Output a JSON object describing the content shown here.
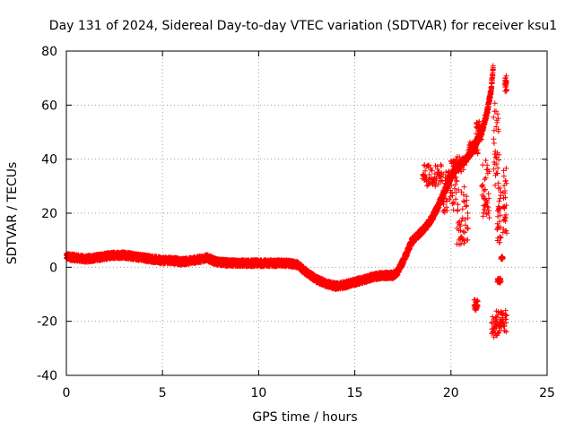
{
  "chart_data": {
    "type": "scatter",
    "title": "Day 131 of 2024, Sidereal Day-to-day VTEC variation (SDTVAR) for receiver ksu1",
    "xlabel": "GPS time / hours",
    "ylabel": "SDTVAR / TECUs",
    "xlim": [
      0,
      25
    ],
    "ylim": [
      -40,
      80
    ],
    "x_ticks": [
      0,
      5,
      10,
      15,
      20,
      25
    ],
    "y_ticks": [
      -40,
      -20,
      0,
      20,
      40,
      60,
      80
    ],
    "grid": true,
    "marker_color": "#ff0000",
    "marker": "+",
    "series": [
      {
        "name": "SDTVAR",
        "trend": [
          [
            0.0,
            4
          ],
          [
            0.5,
            3.5
          ],
          [
            1.0,
            3
          ],
          [
            1.5,
            3.5
          ],
          [
            2.0,
            4
          ],
          [
            2.5,
            4.5
          ],
          [
            3.0,
            4.5
          ],
          [
            3.5,
            4
          ],
          [
            4.0,
            3.5
          ],
          [
            4.5,
            3
          ],
          [
            5.0,
            2.5
          ],
          [
            5.5,
            2.5
          ],
          [
            6.0,
            2
          ],
          [
            6.5,
            2.5
          ],
          [
            7.0,
            3
          ],
          [
            7.3,
            3.5
          ],
          [
            7.8,
            2
          ],
          [
            8.5,
            1.5
          ],
          [
            9.0,
            1.5
          ],
          [
            9.5,
            1.5
          ],
          [
            10.0,
            1.5
          ],
          [
            10.5,
            1.5
          ],
          [
            11.0,
            1.5
          ],
          [
            11.5,
            1.5
          ],
          [
            12.0,
            1
          ],
          [
            12.5,
            -2
          ],
          [
            13.0,
            -4.5
          ],
          [
            13.5,
            -6
          ],
          [
            14.0,
            -7
          ],
          [
            14.5,
            -6.5
          ],
          [
            15.0,
            -5.5
          ],
          [
            15.5,
            -4.5
          ],
          [
            16.0,
            -3.5
          ],
          [
            16.5,
            -3
          ],
          [
            17.0,
            -3
          ],
          [
            17.2,
            -2
          ],
          [
            17.5,
            2
          ],
          [
            17.8,
            7
          ],
          [
            18.0,
            10
          ],
          [
            18.3,
            12
          ],
          [
            18.7,
            15
          ],
          [
            19.0,
            18
          ],
          [
            19.3,
            22
          ],
          [
            19.6,
            27
          ],
          [
            19.9,
            32
          ],
          [
            20.2,
            36
          ],
          [
            20.5,
            38
          ],
          [
            20.8,
            40
          ],
          [
            21.0,
            42
          ],
          [
            21.3,
            46
          ],
          [
            21.6,
            50
          ],
          [
            21.9,
            58
          ],
          [
            22.1,
            66
          ],
          [
            22.2,
            74
          ]
        ],
        "clusters": [
          {
            "x": [
              18.5,
              19.5
            ],
            "y": [
              30,
              38
            ]
          },
          {
            "x": [
              19.5,
              20.3
            ],
            "y": [
              20,
              36
            ]
          },
          {
            "x": [
              20.0,
              20.7
            ],
            "y": [
              35,
              41
            ]
          },
          {
            "x": [
              20.3,
              20.9
            ],
            "y": [
              8,
              30
            ]
          },
          {
            "x": [
              20.9,
              21.4
            ],
            "y": [
              42,
              47
            ]
          },
          {
            "x": [
              21.3,
              21.6
            ],
            "y": [
              47,
              54
            ]
          },
          {
            "x": [
              21.6,
              22.0
            ],
            "y": [
              18,
              40
            ]
          },
          {
            "x": [
              22.2,
              22.5
            ],
            "y": [
              30,
              62
            ]
          },
          {
            "x": [
              22.4,
              22.6
            ],
            "y": [
              8,
              30
            ]
          },
          {
            "x": [
              22.7,
              22.9
            ],
            "y": [
              12,
              37
            ]
          },
          {
            "x": [
              22.8,
              22.9
            ],
            "y": [
              65,
              71
            ]
          },
          {
            "x": [
              21.2,
              21.4
            ],
            "y": [
              -16,
              -12
            ]
          },
          {
            "x": [
              22.1,
              22.5
            ],
            "y": [
              -26,
              -16
            ]
          },
          {
            "x": [
              22.5,
              22.9
            ],
            "y": [
              -24,
              -16
            ]
          },
          {
            "x": [
              22.4,
              22.6
            ],
            "y": [
              -6,
              -4
            ]
          },
          {
            "x": [
              22.6,
              22.7
            ],
            "y": [
              3,
              4
            ]
          }
        ]
      }
    ]
  }
}
